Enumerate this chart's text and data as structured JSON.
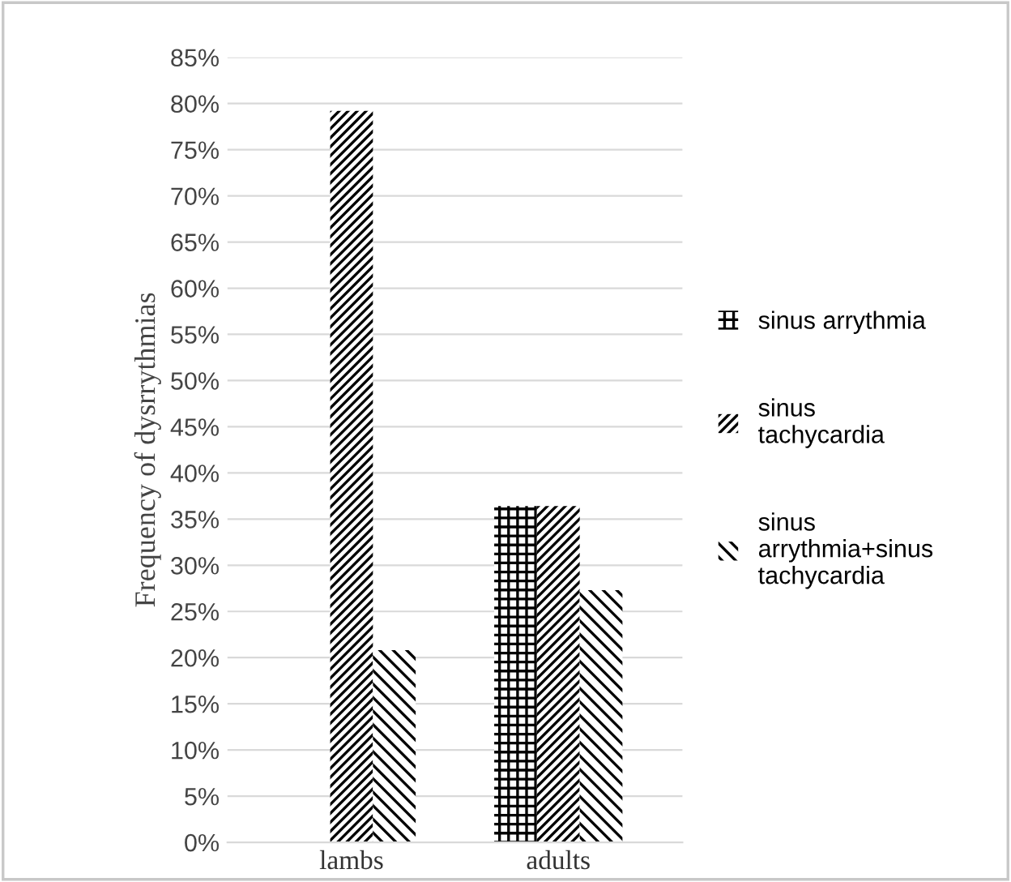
{
  "chart_data": {
    "type": "bar",
    "ylabel": "Frequency of dysrrythmias",
    "categories": [
      "lambs",
      "adults"
    ],
    "series": [
      {
        "name": "sinus arrythmia",
        "color": "#000000",
        "values": [
          0,
          36.4
        ]
      },
      {
        "name": "sinus tachycardia",
        "color": "#000000",
        "values": [
          79.2,
          36.4
        ]
      },
      {
        "name": "sinus arrythmia+sinus tachycardia",
        "color": "#000000",
        "values": [
          20.8,
          27.3
        ]
      }
    ],
    "ylim": [
      0,
      85
    ],
    "yticks": [
      {
        "value": 0,
        "label": "0%"
      },
      {
        "value": 5,
        "label": "5%"
      },
      {
        "value": 10,
        "label": "10%"
      },
      {
        "value": 15,
        "label": "15%"
      },
      {
        "value": 20,
        "label": "20%"
      },
      {
        "value": 25,
        "label": "25%"
      },
      {
        "value": 30,
        "label": "30%"
      },
      {
        "value": 35,
        "label": "35%"
      },
      {
        "value": 40,
        "label": "40%"
      },
      {
        "value": 45,
        "label": "45%"
      },
      {
        "value": 50,
        "label": "50%"
      },
      {
        "value": 55,
        "label": "55%"
      },
      {
        "value": 60,
        "label": "60%"
      },
      {
        "value": 65,
        "label": "65%"
      },
      {
        "value": 70,
        "label": "70%"
      },
      {
        "value": 75,
        "label": "75%"
      },
      {
        "value": 80,
        "label": "80%"
      },
      {
        "value": 85,
        "label": "85%"
      }
    ],
    "grid": "y",
    "legend": "right"
  }
}
